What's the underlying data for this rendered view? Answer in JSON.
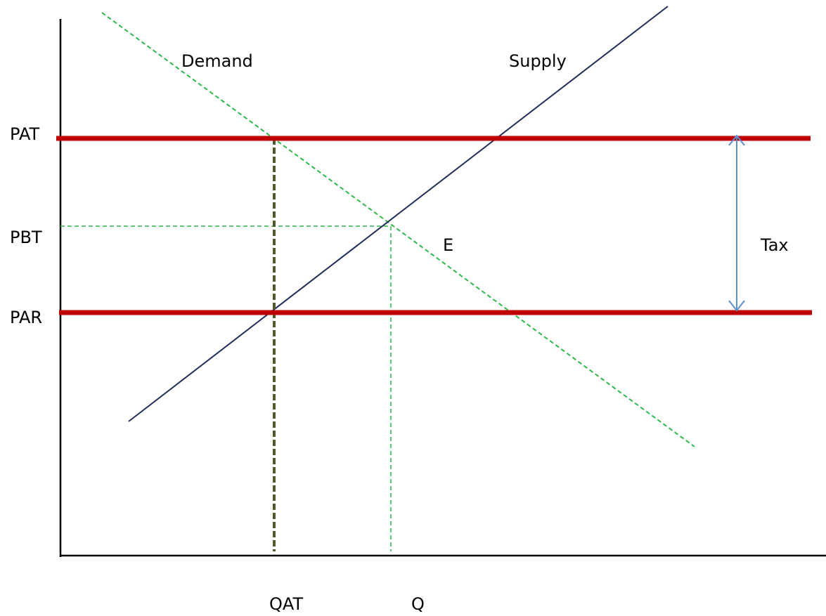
{
  "labels": {
    "demand": "Demand",
    "supply": "Supply",
    "equilibrium": "E",
    "tax": "Tax",
    "price_after_tax": "PAT",
    "price_before_tax": "PBT",
    "price_after_tax_received": "PAR",
    "quantity_after_tax": "QAT",
    "quantity": "Q"
  },
  "colors": {
    "axes": "#000000",
    "supply_line": "#1f2d5a",
    "demand_line": "#2eb84a",
    "price_lines": "#c00000",
    "qat_line": "#4f5a2c",
    "guide_lines": "#2eb84a",
    "tax_arrow": "#5b8fd0"
  }
}
